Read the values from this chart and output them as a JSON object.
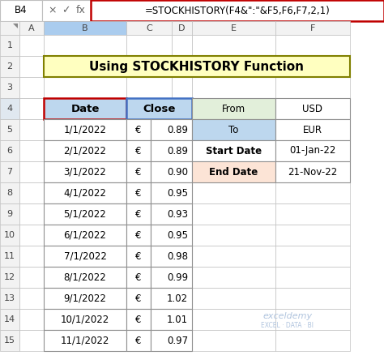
{
  "title": "Using STOCKHISTORY Function",
  "formula_bar_cell": "B4",
  "formula_bar_formula": "=STOCKHISTORY(F4&\":\"&F5,F6,F7,2,1)",
  "col_headers": [
    "A",
    "B",
    "C",
    "D",
    "E",
    "F"
  ],
  "main_table_data": [
    [
      "1/1/2022",
      "€",
      "0.89"
    ],
    [
      "2/1/2022",
      "€",
      "0.89"
    ],
    [
      "3/1/2022",
      "€",
      "0.90"
    ],
    [
      "4/1/2022",
      "€",
      "0.95"
    ],
    [
      "5/1/2022",
      "€",
      "0.93"
    ],
    [
      "6/1/2022",
      "€",
      "0.95"
    ],
    [
      "7/1/2022",
      "€",
      "0.98"
    ],
    [
      "8/1/2022",
      "€",
      "0.99"
    ],
    [
      "9/1/2022",
      "€",
      "1.02"
    ],
    [
      "10/1/2022",
      "€",
      "1.01"
    ],
    [
      "11/1/2022",
      "€",
      "0.97"
    ]
  ],
  "side_table_rows": [
    {
      "label": "From",
      "value": "USD",
      "label_bg": "#E2EFDA",
      "value_bg": "#FFFFFF"
    },
    {
      "label": "To",
      "value": "EUR",
      "label_bg": "#BDD7EE",
      "value_bg": "#FFFFFF"
    },
    {
      "label": "Start Date",
      "value": "01-Jan-22",
      "label_bg": "#FFFFFF",
      "value_bg": "#FFFFFF"
    },
    {
      "label": "End Date",
      "value": "21-Nov-22",
      "label_bg": "#FCE4D6",
      "value_bg": "#FFFFFF"
    }
  ],
  "title_bg": "#FFFFC0",
  "title_border": "#808000",
  "header_bg": "#BDD7EE",
  "header_border_main": "#C00000",
  "header_border_close": "#4472C4",
  "cell_bg": "#FFFFFF",
  "gridline_color": "#C0C0C0",
  "col_header_bg": "#F2F2F2",
  "row_header_bg": "#F2F2F2",
  "formula_bar_border": "#C00000",
  "formula_bar_bg": "#FFFFFF",
  "wb_bg": "#FFFFFF",
  "watermark_color": "#B0C4DE",
  "col_header_selected_bg": "#AACCEE",
  "row_header_selected_bg": "#E0E8F0"
}
